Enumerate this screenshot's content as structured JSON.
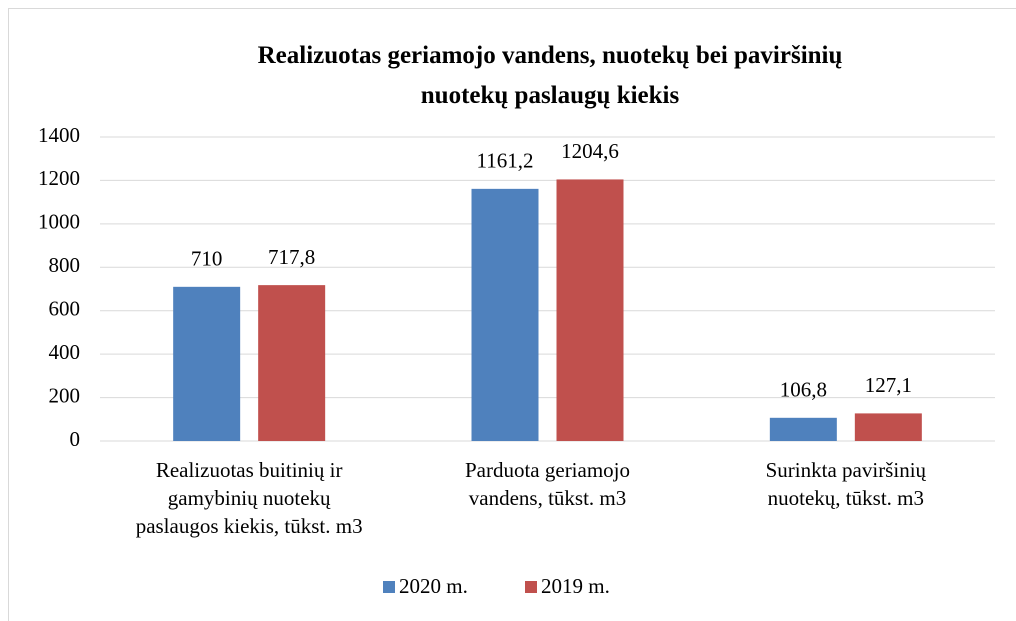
{
  "chart_data": {
    "type": "bar",
    "title": "Realizuotas geriamojo vandens, nuotekų bei paviršinių\nnuotekų paslaugų kiekis",
    "categories": [
      "Realizuotas buitinių ir\ngamybinių nuotekų\npaslaugos kiekis, tūkst. m3",
      "Parduota geriamojo\nvandens, tūkst. m3",
      "Surinkta paviršinių\nnuotekų, tūkst. m3"
    ],
    "series": [
      {
        "name": "2020 m.",
        "color": "#4f81bd",
        "values": [
          710,
          1161.2,
          106.8
        ],
        "value_labels": [
          "710",
          "1161,2",
          "106,8"
        ]
      },
      {
        "name": "2019 m.",
        "color": "#c0504d",
        "values": [
          717.8,
          1204.6,
          127.1
        ],
        "value_labels": [
          "717,8",
          "1204,6",
          "127,1"
        ]
      }
    ],
    "ylim": [
      0,
      1400
    ],
    "yticks": [
      0,
      200,
      400,
      600,
      800,
      1000,
      1200,
      1400
    ],
    "grid": true,
    "legend": "bottom"
  }
}
